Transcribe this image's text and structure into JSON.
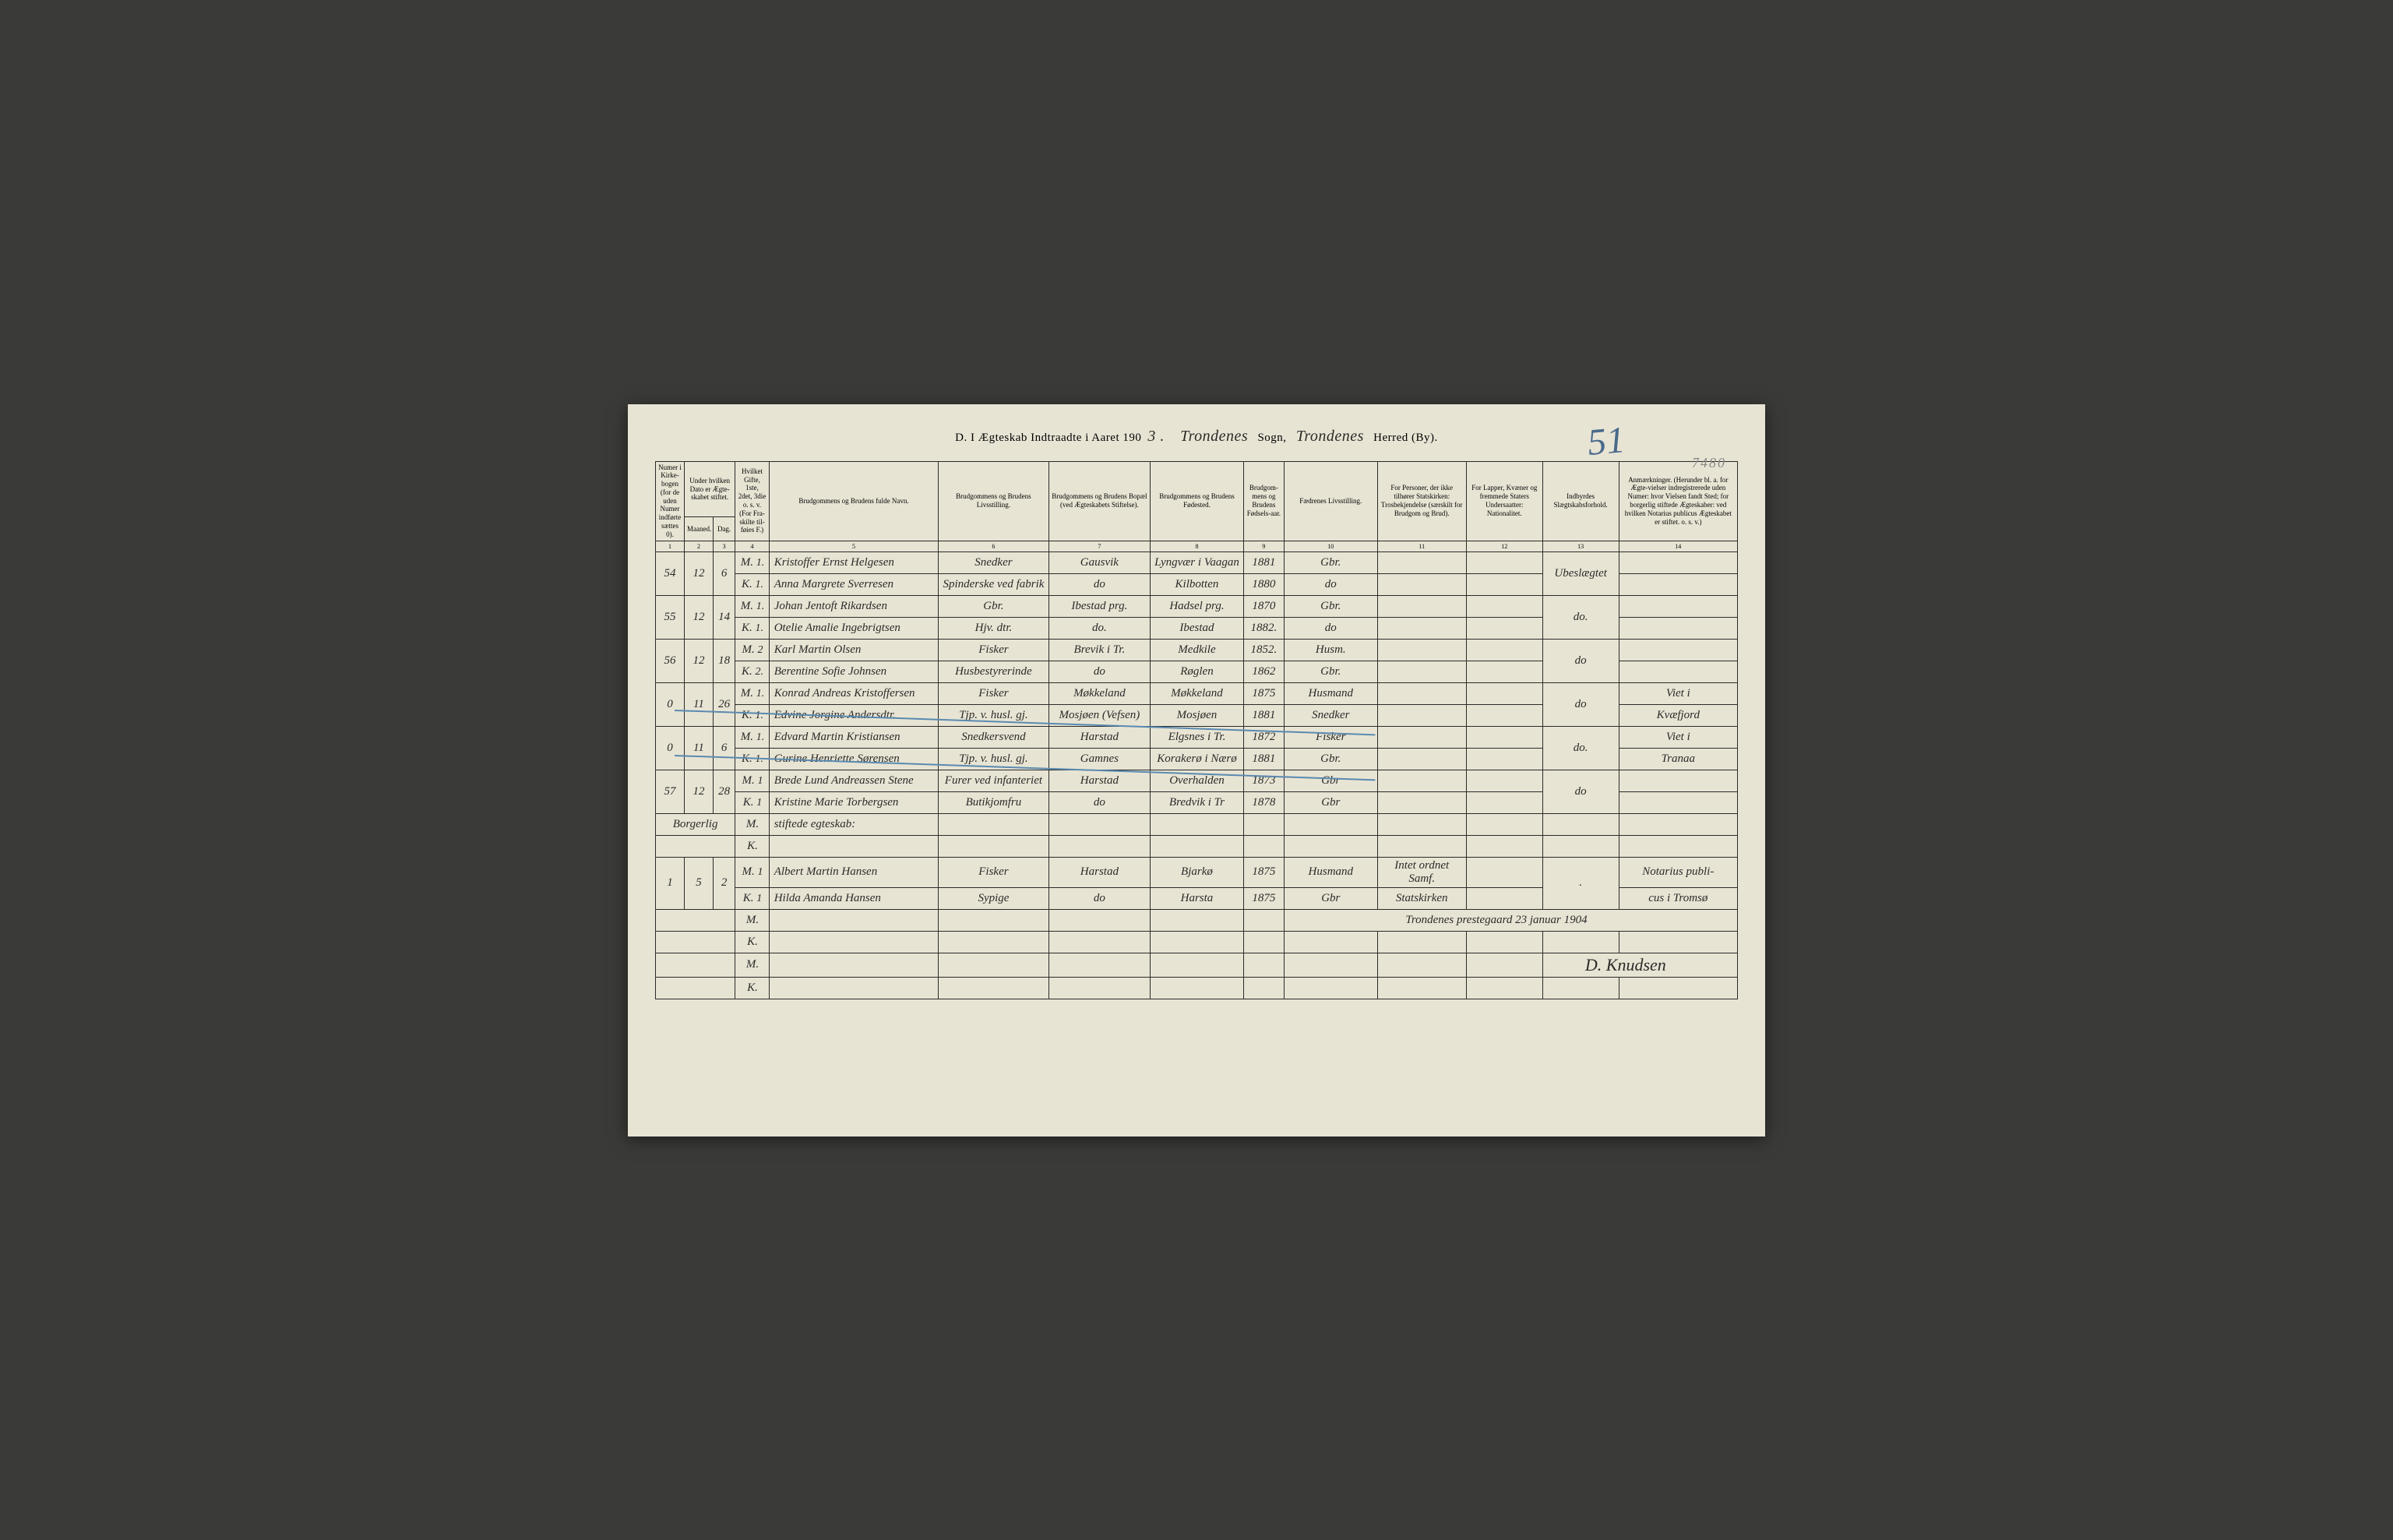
{
  "header": {
    "prefix": "D. I Ægteskab Indtraadte i Aaret 190",
    "year_suffix": "3 .",
    "sogn_value": "Trondenes",
    "sogn_label": "Sogn,",
    "herred_value": "Trondenes",
    "herred_label": "Herred (By).",
    "page_number": "51",
    "stamp_number": "7480"
  },
  "columns": {
    "h1": "Numer i Kirke-bogen (for de uden Numer indførte sættes 0).",
    "h2": "Under hvilken Dato er Ægte-skabet stiftet.",
    "h2a": "Maaned.",
    "h2b": "Dag.",
    "h3": "Hvilket Gifte, 1ste, 2det, 3die o. s. v. (For Fra-skilte til-føies F.)",
    "h5": "Brudgommens og Brudens fulde Navn.",
    "h6": "Brudgommens og Brudens Livsstilling.",
    "h7": "Brudgommens og Brudens Bopæl (ved Ægteskabets Stiftelse).",
    "h8": "Brudgommens og Brudens Fødested.",
    "h9": "Brudgom-mens og Brudens Fødsels-aar.",
    "h10": "Fædrenes Livsstilling.",
    "h11": "For Personer, der ikke tilhører Statskirken: Trosbekjendelse (særskilt for Brudgom og Brud).",
    "h12": "For Lapper, Kvæner og fremmede Staters Undersaatter: Nationalitet.",
    "h13": "Indbyrdes Slægtskabsforhold.",
    "h14": "Anmærkninger. (Herunder bl. a. for Ægte-vielser indregistrerede uden Numer: hvor Vielsen fandt Sted; for borgerlig stiftede Ægteskaber: ved hvilken Notarius publicus Ægteskabet er stiftet. o. s. v.)",
    "nums": [
      "1",
      "2",
      "3",
      "4",
      "5",
      "6",
      "7",
      "8",
      "9",
      "10",
      "11",
      "12",
      "13",
      "14"
    ]
  },
  "rows": [
    {
      "num": "54",
      "month": "12",
      "day": "6",
      "m": {
        "mk": "M.",
        "gifte": "1.",
        "navn": "Kristoffer Ernst Helgesen",
        "stilling": "Snedker",
        "bopael": "Gausvik",
        "fsted": "Lyngvær i Vaagan",
        "aar": "1881",
        "fader": "Gbr.",
        "tros": "",
        "nat": "",
        "slaegt": "Ubeslægtet",
        "anm": ""
      },
      "k": {
        "mk": "K.",
        "gifte": "1.",
        "navn": "Anna Margrete Sverresen",
        "stilling": "Spinderske ved fabrik",
        "bopael": "do",
        "fsted": "Kilbotten",
        "aar": "1880",
        "fader": "do",
        "tros": "",
        "nat": "",
        "slaegt": "",
        "anm": ""
      }
    },
    {
      "num": "55",
      "month": "12",
      "day": "14",
      "m": {
        "mk": "M.",
        "gifte": "1.",
        "navn": "Johan Jentoft Rikardsen",
        "stilling": "Gbr.",
        "bopael": "Ibestad prg.",
        "fsted": "Hadsel prg.",
        "aar": "1870",
        "fader": "Gbr.",
        "tros": "",
        "nat": "",
        "slaegt": "do.",
        "anm": ""
      },
      "k": {
        "mk": "K.",
        "gifte": "1.",
        "navn": "Otelie Amalie Ingebrigtsen",
        "stilling": "Hjv. dtr.",
        "bopael": "do.",
        "fsted": "Ibestad",
        "aar": "1882.",
        "fader": "do",
        "tros": "",
        "nat": "",
        "slaegt": "",
        "anm": ""
      }
    },
    {
      "num": "56",
      "month": "12",
      "day": "18",
      "m": {
        "mk": "M.",
        "gifte": "2",
        "navn": "Karl Martin Olsen",
        "stilling": "Fisker",
        "bopael": "Brevik i Tr.",
        "fsted": "Medkile",
        "aar": "1852.",
        "fader": "Husm.",
        "tros": "",
        "nat": "",
        "slaegt": "do",
        "anm": ""
      },
      "k": {
        "mk": "K.",
        "gifte": "2.",
        "navn": "Berentine Sofie Johnsen",
        "stilling": "Husbestyrerinde",
        "bopael": "do",
        "fsted": "Røglen",
        "aar": "1862",
        "fader": "Gbr.",
        "tros": "",
        "nat": "",
        "slaegt": "",
        "anm": ""
      }
    },
    {
      "num": "0",
      "month": "11",
      "day": "26",
      "m": {
        "mk": "M.",
        "gifte": "1.",
        "navn": "Konrad Andreas Kristoffersen",
        "stilling": "Fisker",
        "bopael": "Møkkeland",
        "fsted": "Møkkeland",
        "aar": "1875",
        "fader": "Husmand",
        "tros": "",
        "nat": "",
        "slaegt": "do",
        "anm": "Viet i"
      },
      "k": {
        "mk": "K.",
        "gifte": "1.",
        "navn": "Edvine Jorgine Andersdtr.",
        "stilling": "Tjp. v. husl. gj.",
        "bopael": "Mosjøen (Vefsen)",
        "fsted": "Mosjøen",
        "aar": "1881",
        "fader": "Snedker",
        "tros": "",
        "nat": "",
        "slaegt": "",
        "anm": "Kvæfjord"
      }
    },
    {
      "num": "0",
      "month": "11",
      "day": "6",
      "m": {
        "mk": "M.",
        "gifte": "1.",
        "navn": "Edvard Martin Kristiansen",
        "stilling": "Snedkersvend",
        "bopael": "Harstad",
        "fsted": "Elgsnes i Tr.",
        "aar": "1872",
        "fader": "Fisker",
        "tros": "",
        "nat": "",
        "slaegt": "do.",
        "anm": "Viet i"
      },
      "k": {
        "mk": "K.",
        "gifte": "1.",
        "navn": "Gurine Henriette Sørensen",
        "stilling": "Tjp. v. husl. gj.",
        "bopael": "Gamnes",
        "fsted": "Korakerø i Nærø",
        "aar": "1881",
        "fader": "Gbr.",
        "tros": "",
        "nat": "",
        "slaegt": "",
        "anm": "Tranaa"
      }
    },
    {
      "num": "57",
      "month": "12",
      "day": "28",
      "m": {
        "mk": "M.",
        "gifte": "1",
        "navn": "Brede Lund Andreassen Stene",
        "stilling": "Furer ved infanteriet",
        "bopael": "Harstad",
        "fsted": "Overhalden",
        "aar": "1873",
        "fader": "Gbr",
        "tros": "",
        "nat": "",
        "slaegt": "do",
        "anm": ""
      },
      "k": {
        "mk": "K.",
        "gifte": "1",
        "navn": "Kristine Marie Torbergsen",
        "stilling": "Butikjomfru",
        "bopael": "do",
        "fsted": "Bredvik i Tr",
        "aar": "1878",
        "fader": "Gbr",
        "tros": "",
        "nat": "",
        "slaegt": "",
        "anm": ""
      }
    }
  ],
  "section": {
    "label_left": "Borgerlig",
    "label_right": "stiftede egteskab:"
  },
  "civil_row": {
    "num": "1",
    "month": "5",
    "day": "2",
    "m": {
      "mk": "M.",
      "gifte": "1",
      "navn": "Albert Martin Hansen",
      "stilling": "Fisker",
      "bopael": "Harstad",
      "fsted": "Bjarkø",
      "aar": "1875",
      "fader": "Husmand",
      "tros": "Intet ordnet Samf.",
      "nat": "",
      "slaegt": ".",
      "anm": "Notarius publi-"
    },
    "k": {
      "mk": "K.",
      "gifte": "1",
      "navn": "Hilda Amanda Hansen",
      "stilling": "Sypige",
      "bopael": "do",
      "fsted": "Harsta",
      "aar": "1875",
      "fader": "Gbr",
      "tros": "Statskirken",
      "nat": "",
      "slaegt": "",
      "anm": "cus i Tromsø"
    }
  },
  "signature": {
    "place_date": "Trondenes prestegaard 23 januar 1904",
    "name": "D. Knudsen"
  }
}
